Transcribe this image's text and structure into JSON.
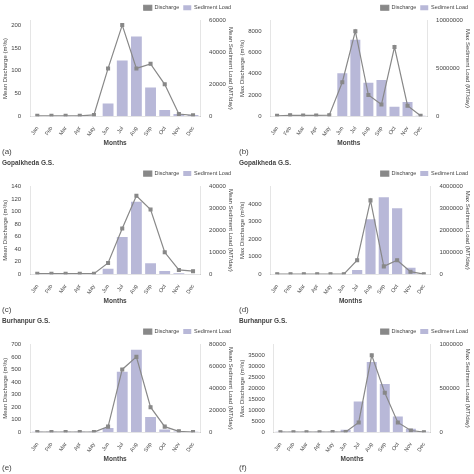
{
  "chart_data": [
    {
      "type": "bar",
      "annotations": [
        "(a)"
      ],
      "x_label": "Months",
      "y_label": "Mean Discharge (m³/s)",
      "y2_label": "Mean Sediment Load (MT/day)",
      "categories": [
        "Jan",
        "Feb",
        "Mar",
        "Apr",
        "May",
        "Jun",
        "Jul",
        "Aug",
        "Sep",
        "Oct",
        "Nov",
        "Dec"
      ],
      "series": [
        {
          "name": "Discharge",
          "type": "line",
          "color": "#888888",
          "marker": "square",
          "values": [
            1,
            1,
            1,
            1,
            3,
            105,
            200,
            105,
            115,
            70,
            5,
            2
          ]
        },
        {
          "name": "Sediment Load",
          "type": "bar",
          "color": "#b8b8d8",
          "axis": "y2",
          "values": [
            200,
            200,
            200,
            200,
            200,
            8000,
            35000,
            50000,
            18000,
            4000,
            1500,
            800
          ]
        }
      ],
      "ylim": [
        0,
        210
      ],
      "yticks": [
        0,
        50,
        100,
        150,
        200
      ],
      "y2lim": [
        0,
        60000
      ],
      "y2ticks": [
        0,
        20000,
        40000,
        60000
      ],
      "legend": "upper right",
      "grid": false
    },
    {
      "type": "bar",
      "annotations": [
        "(b)"
      ],
      "x_label": "Months",
      "y_label": "Max Discharge (m³/s)",
      "y2_label": "Max Sediment Load (MT/day)",
      "categories": [
        "Jan",
        "Feb",
        "Mar",
        "Apr",
        "May",
        "Jun",
        "Jul",
        "Aug",
        "Sep",
        "Oct",
        "Nov",
        "Dec"
      ],
      "series": [
        {
          "name": "Discharge",
          "type": "line",
          "color": "#888888",
          "marker": "square",
          "values": [
            50,
            100,
            80,
            80,
            100,
            3200,
            8000,
            2000,
            1100,
            6500,
            1000,
            50
          ]
        },
        {
          "name": "Sediment Load",
          "type": "bar",
          "color": "#b8b8d8",
          "axis": "y2",
          "values": [
            10000,
            10000,
            10000,
            10000,
            10000,
            4500000,
            8000000,
            3500000,
            3800000,
            1000000,
            1500000,
            50000
          ]
        }
      ],
      "ylim": [
        0,
        9000
      ],
      "yticks": [
        0,
        2000,
        4000,
        6000,
        8000
      ],
      "y2lim": [
        0,
        10000000
      ],
      "y2ticks": [
        0,
        5000000,
        10000000
      ],
      "legend": "upper right",
      "grid": false
    },
    {
      "type": "bar",
      "title": "Gopalkheda G.S.",
      "annotations": [
        "(c)"
      ],
      "x_label": "Months",
      "y_label": "Mean Discharge (m³/s)",
      "y2_label": "Mean Sediment Load (MT/day)",
      "categories": [
        "Jan",
        "Feb",
        "Mar",
        "Apr",
        "May",
        "Jun",
        "Jul",
        "Aug",
        "Sep",
        "Oct",
        "Nov",
        "Dec"
      ],
      "series": [
        {
          "name": "Discharge",
          "type": "line",
          "color": "#888888",
          "marker": "square",
          "values": [
            1,
            1,
            1,
            1,
            1,
            18,
            73,
            125,
            103,
            35,
            7,
            5
          ]
        },
        {
          "name": "Sediment Load",
          "type": "bar",
          "color": "#b8b8d8",
          "axis": "y2",
          "values": [
            100,
            100,
            100,
            100,
            100,
            2500,
            17000,
            33000,
            5000,
            1500,
            500,
            100
          ]
        }
      ],
      "ylim": [
        0,
        140
      ],
      "yticks": [
        0,
        20,
        40,
        60,
        80,
        100,
        120,
        140
      ],
      "y2lim": [
        0,
        40000
      ],
      "y2ticks": [
        0,
        10000,
        20000,
        30000,
        40000
      ],
      "legend": "upper right",
      "grid": false
    },
    {
      "type": "bar",
      "title": "Gopalkheda G.S.",
      "annotations": [
        "(d)"
      ],
      "x_label": "Months",
      "y_label": "Max Discharge (m³/s)",
      "y2_label": "Max Sediment Load (MT/day)",
      "categories": [
        "Jan",
        "Feb",
        "Mar",
        "Apr",
        "May",
        "Jun",
        "Jul",
        "Aug",
        "Sep",
        "Oct",
        "Nov",
        "Dec"
      ],
      "series": [
        {
          "name": "Discharge",
          "type": "line",
          "color": "#888888",
          "marker": "square",
          "values": [
            5,
            5,
            5,
            5,
            5,
            5,
            800,
            4200,
            450,
            800,
            150,
            5
          ]
        },
        {
          "name": "Sediment Load",
          "type": "bar",
          "color": "#b8b8d8",
          "axis": "y2",
          "values": [
            1000,
            1000,
            1000,
            1000,
            1000,
            1000,
            200000,
            2500000,
            3500000,
            3000000,
            300000,
            1000
          ]
        }
      ],
      "ylim": [
        0,
        5000
      ],
      "yticks": [
        0,
        1000,
        2000,
        3000,
        4000
      ],
      "y2lim": [
        0,
        4000000
      ],
      "y2ticks": [
        0,
        1000000,
        2000000,
        3000000,
        4000000
      ],
      "legend": "upper right",
      "grid": false
    },
    {
      "type": "bar",
      "title": "Burhanpur G.S.",
      "annotations": [
        "(e)"
      ],
      "x_label": "Months",
      "y_label": "Mean Discharge (m³/s)",
      "y2_label": "Mean Sediment Load (MT/day)",
      "categories": [
        "Jan",
        "Feb",
        "Mar",
        "Apr",
        "May",
        "Jun",
        "Jul",
        "Aug",
        "Sep",
        "Oct",
        "Nov",
        "Dec"
      ],
      "series": [
        {
          "name": "Discharge",
          "type": "line",
          "color": "#888888",
          "marker": "square",
          "values": [
            2,
            2,
            2,
            2,
            2,
            45,
            500,
            600,
            200,
            45,
            8,
            2
          ]
        },
        {
          "name": "Sediment Load",
          "type": "bar",
          "color": "#b8b8d8",
          "axis": "y2",
          "values": [
            500,
            500,
            500,
            500,
            500,
            4000,
            55000,
            75000,
            14000,
            2500,
            800,
            500
          ]
        }
      ],
      "ylim": [
        0,
        700
      ],
      "yticks": [
        0,
        100,
        200,
        300,
        400,
        500,
        600,
        700
      ],
      "y2lim": [
        0,
        80000
      ],
      "y2ticks": [
        0,
        20000,
        40000,
        60000,
        80000
      ],
      "legend": "upper right",
      "grid": false
    },
    {
      "type": "bar",
      "title": "Burhanpur G.S.",
      "annotations": [
        "(f)"
      ],
      "x_label": "Months",
      "y_label": "Max Discharge (m³/s)",
      "y2_label": "Max Sediment Load (MT/day)",
      "categories": [
        "Jan",
        "Feb",
        "Mar",
        "Apr",
        "May",
        "Jun",
        "Jul",
        "Aug",
        "Sep",
        "Oct",
        "Nov",
        "Dec"
      ],
      "series": [
        {
          "name": "Discharge",
          "type": "line",
          "color": "#888888",
          "marker": "square",
          "values": [
            50,
            50,
            50,
            50,
            100,
            150,
            4500,
            35000,
            18000,
            4500,
            800,
            50
          ]
        },
        {
          "name": "Sediment Load",
          "type": "bar",
          "color": "#b8b8d8",
          "axis": "y2",
          "values": [
            5000,
            5000,
            5000,
            5000,
            5000,
            30000,
            350000,
            800000,
            550000,
            180000,
            40000,
            5000
          ]
        }
      ],
      "ylim": [
        0,
        40000
      ],
      "yticks": [
        0,
        5000,
        10000,
        15000,
        20000,
        25000,
        30000,
        35000
      ],
      "y2lim": [
        0,
        1000000
      ],
      "y2ticks": [
        0,
        500000,
        1000000
      ],
      "legend": "upper right",
      "grid": false
    }
  ]
}
